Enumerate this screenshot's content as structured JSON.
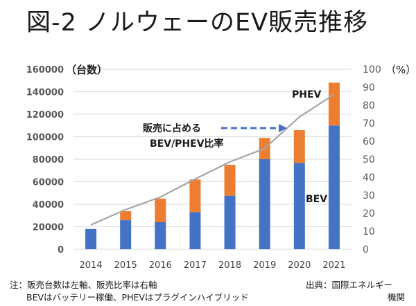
{
  "title": "図-2 ノルウェーのEV販売推移",
  "chart_data": {
    "type": "bar",
    "stacked": true,
    "title": "図-2 ノルウェーのEV販売推移",
    "categories": [
      "2014",
      "2015",
      "2016",
      "2017",
      "2018",
      "2019",
      "2020",
      "2021"
    ],
    "series": [
      {
        "name": "BEV",
        "axis": "left",
        "type": "bar",
        "color": "#4472C4",
        "values": [
          18000,
          25800,
          24000,
          33000,
          47600,
          80000,
          76800,
          110000
        ]
      },
      {
        "name": "PHEV",
        "axis": "left",
        "type": "bar",
        "color": "#ED7D31",
        "values": [
          0,
          8000,
          21000,
          29000,
          27400,
          19000,
          29000,
          38000
        ]
      },
      {
        "name": "販売に占めるBEV/PHEV比率",
        "axis": "right",
        "type": "line",
        "color": "#A5A5A5",
        "values": [
          13.5,
          22,
          29,
          39,
          48.5,
          56,
          73.5,
          86
        ]
      }
    ],
    "y_left": {
      "label": "（台数）",
      "ylim": [
        0,
        160000
      ],
      "ticks": [
        "0",
        "20000",
        "40000",
        "60000",
        "80000",
        "100000",
        "120000",
        "140000",
        "160000"
      ]
    },
    "y_right": {
      "label": "（%）",
      "ylim": [
        0,
        100
      ],
      "ticks": [
        "0",
        "10",
        "20",
        "30",
        "40",
        "50",
        "60",
        "70",
        "80",
        "90",
        "100"
      ]
    },
    "grid": true,
    "annotations": {
      "phev_label": "PHEV",
      "bev_label": "BEV",
      "ratio_label_line1": "販売に占める",
      "ratio_label_line2": "BEV/PHEV比率"
    }
  },
  "notes": {
    "line1": "注：販売台数は左軸、販売比率は右軸",
    "line2": "BEVはバッテリー稼働、PHEVはプラグインハイブリッド",
    "source1": "出典：国際エネルギー",
    "source2": "機関"
  }
}
